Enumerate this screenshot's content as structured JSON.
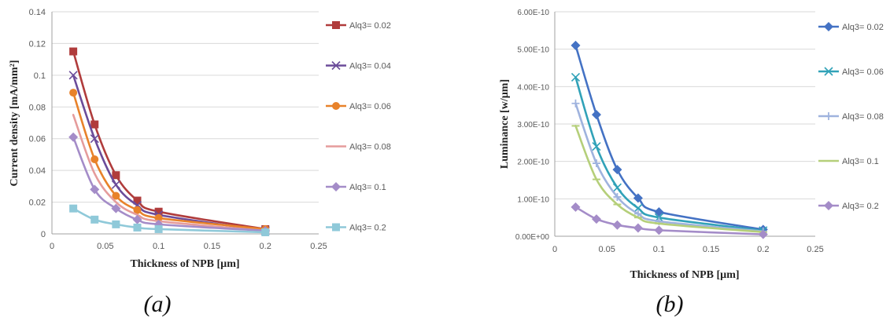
{
  "chart_data": [
    {
      "type": "line",
      "caption": "(a)",
      "xlabel": "Thickness of NPB [µm]",
      "ylabel": "Current  density  [mA/mm²]",
      "xlim": [
        0,
        0.25
      ],
      "ylim": [
        0,
        0.14
      ],
      "xticks": [
        "0",
        "0.05",
        "0.1",
        "0.15",
        "0.2",
        "0.25"
      ],
      "yticks": [
        "0",
        "0.02",
        "0.04",
        "0.06",
        "0.08",
        "0.1",
        "0.12",
        "0.14"
      ],
      "grid": "horizontal",
      "legend_position": "right",
      "x": [
        0.02,
        0.04,
        0.06,
        0.08,
        0.1,
        0.2
      ],
      "series": [
        {
          "name": "Alq3= 0.02",
          "color": "#b03c3c",
          "marker": "square",
          "values": [
            0.115,
            0.069,
            0.037,
            0.021,
            0.014,
            0.003
          ]
        },
        {
          "name": "Alq3= 0.04",
          "color": "#6b4c9a",
          "marker": "x",
          "values": [
            0.1,
            0.06,
            0.031,
            0.018,
            0.012,
            0.002
          ]
        },
        {
          "name": "Alq3= 0.06",
          "color": "#e8822a",
          "marker": "circle",
          "values": [
            0.089,
            0.047,
            0.024,
            0.015,
            0.01,
            0.003
          ]
        },
        {
          "name": "Alq3= 0.08",
          "color": "#e59c9c",
          "marker": "none",
          "values": [
            0.075,
            0.038,
            0.02,
            0.012,
            0.008,
            0.002
          ]
        },
        {
          "name": "Alq3= 0.1",
          "color": "#a48cc8",
          "marker": "diamond",
          "values": [
            0.061,
            0.028,
            0.016,
            0.009,
            0.006,
            0.002
          ]
        },
        {
          "name": "Alq3= 0.2",
          "color": "#8fc9d9",
          "marker": "square",
          "values": [
            0.016,
            0.009,
            0.006,
            0.004,
            0.003,
            0.001
          ]
        }
      ]
    },
    {
      "type": "line",
      "caption": "(b)",
      "xlabel": "Thickness of NPB [µm]",
      "ylabel": "Luminance   [w/µm]",
      "xlim": [
        0,
        0.25
      ],
      "ylim": [
        0,
        6e-10
      ],
      "xticks": [
        "0",
        "0.05",
        "0.1",
        "0.15",
        "0.2",
        "0.25"
      ],
      "yticks": [
        "0.00E+00",
        "1.00E-10",
        "2.00E-10",
        "3.00E-10",
        "4.00E-10",
        "5.00E-10",
        "6.00E-10"
      ],
      "grid": "horizontal",
      "legend_position": "right",
      "x": [
        0.02,
        0.04,
        0.06,
        0.08,
        0.1,
        0.2
      ],
      "series": [
        {
          "name": "Alq3= 0.02",
          "color": "#4472c4",
          "marker": "diamond",
          "values": [
            5.1e-10,
            3.25e-10,
            1.78e-10,
            1.02e-10,
            6.5e-11,
            1.8e-11
          ]
        },
        {
          "name": "Alq3= 0.06",
          "color": "#31a2b8",
          "marker": "x",
          "values": [
            4.25e-10,
            2.4e-10,
            1.3e-10,
            7.5e-11,
            5e-11,
            1.5e-11
          ]
        },
        {
          "name": "Alq3= 0.08",
          "color": "#9fb3de",
          "marker": "plus",
          "values": [
            3.55e-10,
            1.95e-10,
            1.05e-10,
            6e-11,
            4e-11,
            1.3e-11
          ]
        },
        {
          "name": "Alq3= 0.1",
          "color": "#b5cf7a",
          "marker": "dash",
          "values": [
            2.95e-10,
            1.52e-10,
            8.5e-11,
            5e-11,
            3.4e-11,
            1.1e-11
          ]
        },
        {
          "name": "Alq3= 0.2",
          "color": "#a48cc8",
          "marker": "diamond",
          "values": [
            7.8e-11,
            4.6e-11,
            3e-11,
            2.2e-11,
            1.6e-11,
            5e-12
          ]
        }
      ]
    }
  ]
}
